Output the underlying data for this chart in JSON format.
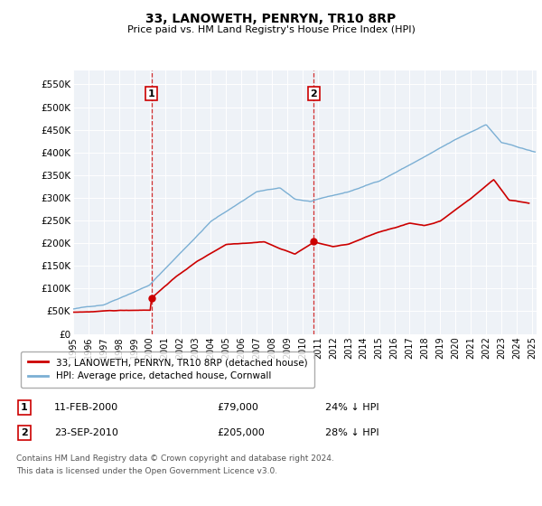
{
  "title": "33, LANOWETH, PENRYN, TR10 8RP",
  "subtitle": "Price paid vs. HM Land Registry's House Price Index (HPI)",
  "ylabel_ticks": [
    "£0",
    "£50K",
    "£100K",
    "£150K",
    "£200K",
    "£250K",
    "£300K",
    "£350K",
    "£400K",
    "£450K",
    "£500K",
    "£550K"
  ],
  "ytick_values": [
    0,
    50000,
    100000,
    150000,
    200000,
    250000,
    300000,
    350000,
    400000,
    450000,
    500000,
    550000
  ],
  "ylim_max": 580000,
  "xlim_start": 1995.0,
  "xlim_end": 2025.3,
  "transaction1": {
    "date_num": 2000.11,
    "price": 79000,
    "label": "1",
    "date_str": "11-FEB-2000",
    "price_str": "£79,000",
    "pct": "24% ↓ HPI"
  },
  "transaction2": {
    "date_num": 2010.73,
    "price": 205000,
    "label": "2",
    "date_str": "23-SEP-2010",
    "price_str": "£205,000",
    "pct": "28% ↓ HPI"
  },
  "legend_line1": "33, LANOWETH, PENRYN, TR10 8RP (detached house)",
  "legend_line2": "HPI: Average price, detached house, Cornwall",
  "footnote1": "Contains HM Land Registry data © Crown copyright and database right 2024.",
  "footnote2": "This data is licensed under the Open Government Licence v3.0.",
  "red_color": "#cc0000",
  "blue_color": "#7bafd4",
  "background_color": "#eef2f7"
}
